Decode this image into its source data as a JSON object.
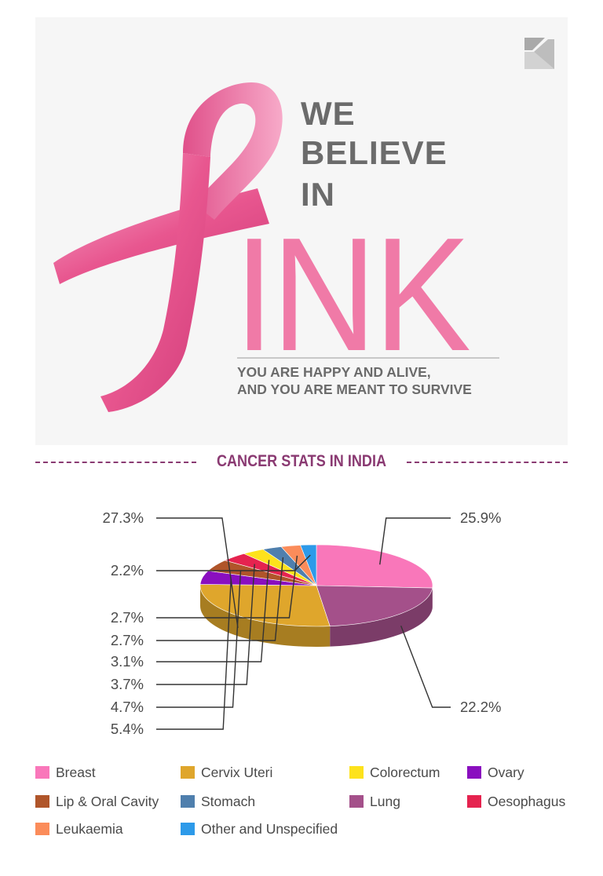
{
  "hero": {
    "title_lines": [
      "WE",
      "BELIEVE",
      "IN"
    ],
    "big_word": "INK",
    "tagline_lines": [
      "YOU ARE HAPPY AND ALIVE,",
      "AND YOU ARE MEANT TO SURVIVE"
    ],
    "ribbon_color": "#e8568f",
    "text_color": "#6b6b6b",
    "accent_color": "#f07aa7"
  },
  "section": {
    "title": "CANCER STATS IN INDIA",
    "title_color": "#8a3a72"
  },
  "chart_data": {
    "type": "pie",
    "title": "CANCER STATS IN INDIA",
    "slices": [
      {
        "name": "Breast",
        "value": 25.9,
        "label": "25.9%",
        "color": "#f977ba"
      },
      {
        "name": "Lung",
        "value": 22.2,
        "label": "22.2%",
        "color": "#a4508a"
      },
      {
        "name": "Cervix Uteri",
        "value": 27.3,
        "label": "27.3%",
        "color": "#dfa62c"
      },
      {
        "name": "Ovary",
        "value": 5.4,
        "label": "5.4%",
        "color": "#8a0fbf"
      },
      {
        "name": "Lip & Oral Cavity",
        "value": 4.7,
        "label": "4.7%",
        "color": "#b0552a"
      },
      {
        "name": "Oesophagus",
        "value": 3.7,
        "label": "3.7%",
        "color": "#e5234f"
      },
      {
        "name": "Colorectum",
        "value": 3.1,
        "label": "3.1%",
        "color": "#fde21c"
      },
      {
        "name": "Stomach",
        "value": 2.7,
        "label": "2.7%",
        "color": "#4f7fad"
      },
      {
        "name": "Leukaemia",
        "value": 2.7,
        "label": "2.7%",
        "color": "#fb8c5a"
      },
      {
        "name": "Other and Unspecified",
        "value": 2.2,
        "label": "2.2%",
        "color": "#2d9ae9"
      }
    ],
    "legend": [
      {
        "name": "Breast",
        "color": "#f977ba"
      },
      {
        "name": "Cervix Uteri",
        "color": "#dfa62c"
      },
      {
        "name": "Colorectum",
        "color": "#fde21c"
      },
      {
        "name": "Ovary",
        "color": "#8a0fbf"
      },
      {
        "name": "Lip & Oral Cavity",
        "color": "#b0552a"
      },
      {
        "name": "Stomach",
        "color": "#4f7fad"
      },
      {
        "name": "Lung",
        "color": "#a4508a"
      },
      {
        "name": "Oesophagus",
        "color": "#e5234f"
      },
      {
        "name": "Leukaemia",
        "color": "#fb8c5a"
      },
      {
        "name": "Other and Unspecified",
        "color": "#2d9ae9"
      }
    ],
    "legend_placement": "bottom"
  }
}
